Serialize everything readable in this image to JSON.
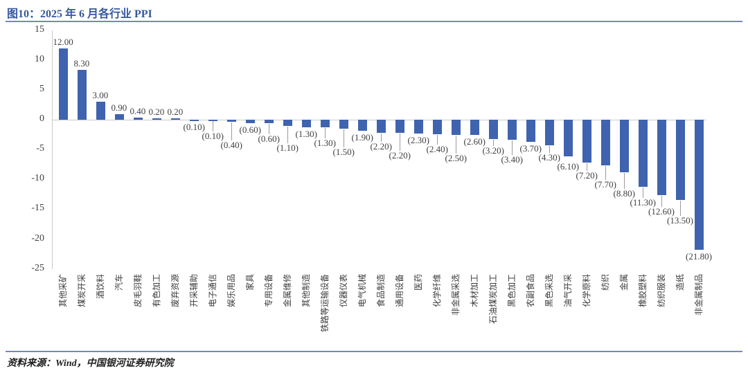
{
  "figure": {
    "title": "图10：2025 年 6 月各行业 PPI",
    "source": "资料来源：Wind，中国银河证券研究院"
  },
  "chart_data": {
    "type": "bar",
    "title": "2025 年 6 月各行业 PPI",
    "categories": [
      "其他采矿",
      "煤炭开采",
      "酒饮料",
      "汽车",
      "皮毛羽鞋",
      "有色加工",
      "废弃资源",
      "开采辅助",
      "电子通信",
      "娱乐用品",
      "家具",
      "专用设备",
      "金属维修",
      "其他制造",
      "铁路等运输设备",
      "仪器仪表",
      "电气机械",
      "食品制造",
      "通用设备",
      "医药",
      "化学纤维",
      "非金属采选",
      "木材加工",
      "石油煤炭加工",
      "黑色加工",
      "农副食品",
      "黑色采选",
      "油气开采",
      "化学原料",
      "纺织",
      "金属",
      "橡胶塑料",
      "纺织服装",
      "造纸",
      "非金属制品"
    ],
    "values": [
      12.0,
      8.3,
      3.0,
      0.9,
      0.4,
      0.2,
      0.2,
      -0.1,
      -0.1,
      -0.4,
      -0.6,
      -0.6,
      -1.1,
      -1.3,
      -1.3,
      -1.5,
      -1.9,
      -2.2,
      -2.2,
      -2.3,
      -2.4,
      -2.5,
      -2.6,
      -3.2,
      -3.4,
      -3.7,
      -4.3,
      -6.1,
      -7.2,
      -7.7,
      -8.8,
      -11.3,
      -12.6,
      -13.5,
      -21.8
    ],
    "value_labels": [
      "12.00",
      "8.30",
      "3.00",
      "0.90",
      "0.40",
      "0.20",
      "0.20",
      "(0.10)",
      "(0.10)",
      "(0.40)",
      "(0.60)",
      "(0.60)",
      "(1.10)",
      "(1.30)",
      "(1.30)",
      "(1.50)",
      "(1.90)",
      "(2.20)",
      "(2.20)",
      "(2.30)",
      "(2.40)",
      "(2.50)",
      "(2.60)",
      "(3.20)",
      "(3.40)",
      "(3.70)",
      "(4.30)",
      "(6.10)",
      "(7.20)",
      "(7.70)",
      "(8.80)",
      "(11.30)",
      "(12.60)",
      "(13.50)",
      "(21.80)"
    ],
    "xlabel": "",
    "ylabel": "",
    "ylim": [
      -25,
      15
    ],
    "yticks": [
      15,
      10,
      5,
      0,
      -5,
      -10,
      -15,
      -20,
      -25
    ],
    "grid": false,
    "legend": "none",
    "bar_color": "#3F63AE",
    "negative_label_style": "parentheses"
  },
  "colors": {
    "title_text": "#35599E",
    "rule_line": "#7388BE",
    "axis_line": "#C9C9C9",
    "tick_text": "#3F3F3F",
    "value_label_text": "#404040",
    "category_label_text": "#3B3B3B",
    "leader_line": "#9B9B9B",
    "source_text": "#1F1F1F"
  }
}
